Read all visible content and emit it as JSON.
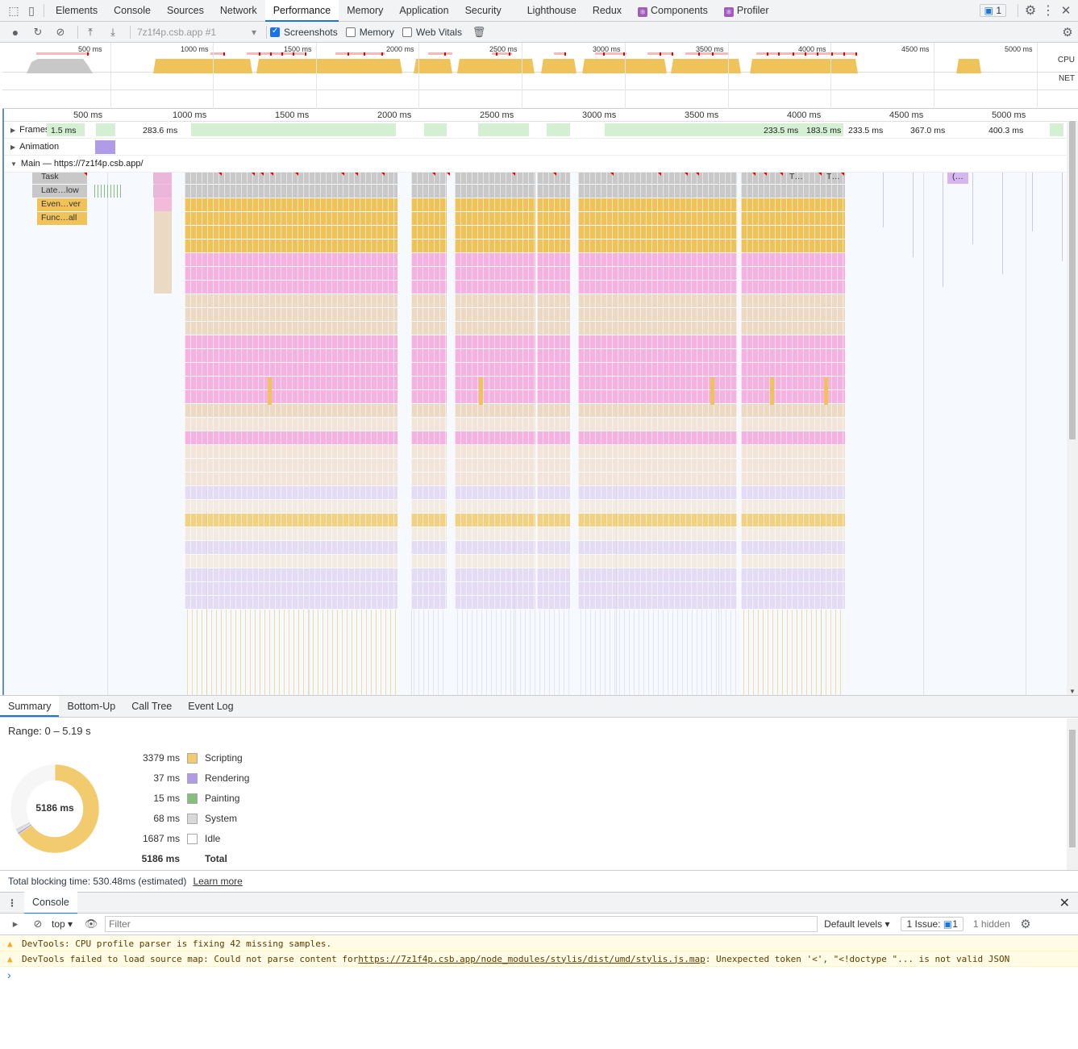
{
  "tabs": [
    "Elements",
    "Console",
    "Sources",
    "Network",
    "Performance",
    "Memory",
    "Application",
    "Security",
    "Lighthouse",
    "Redux",
    "Components",
    "Profiler"
  ],
  "active_tab": "Performance",
  "issues_count": "1",
  "toolbar": {
    "recording": "7z1f4p.csb.app #1",
    "screenshots": "Screenshots",
    "memory": "Memory",
    "web_vitals": "Web Vitals"
  },
  "overview": {
    "ticks": [
      "500 ms",
      "1000 ms",
      "1500 ms",
      "2000 ms",
      "2500 ms",
      "3000 ms",
      "3500 ms",
      "4000 ms",
      "4500 ms",
      "5000 ms"
    ],
    "cpu_label": "CPU",
    "net_label": "NET"
  },
  "ruler": {
    "ticks": [
      "500 ms",
      "1000 ms",
      "1500 ms",
      "2000 ms",
      "2500 ms",
      "3000 ms",
      "3500 ms",
      "4000 ms",
      "4500 ms",
      "5000 ms"
    ]
  },
  "tracks": {
    "frames": "Frames",
    "animation": "Animation",
    "main": "Main — https://7z1f4p.csb.app/"
  },
  "frame_labels": [
    "1.5 ms",
    "283.6 ms",
    "233.5 ms",
    "183.5 ms",
    "233.5 ms",
    "367.0 ms",
    "400.3 ms"
  ],
  "flame_labels": [
    "Task",
    "Late…low",
    "Even…ver",
    "Func…all",
    "T…",
    "T…",
    "(…"
  ],
  "bottom_tabs": [
    "Summary",
    "Bottom-Up",
    "Call Tree",
    "Event Log"
  ],
  "summary": {
    "range": "Range: 0 – 5.19 s",
    "total_center": "5186 ms",
    "rows": [
      {
        "value": "3379 ms",
        "label": "Scripting",
        "color": "#f2cb6e"
      },
      {
        "value": "37 ms",
        "label": "Rendering",
        "color": "#af9be6"
      },
      {
        "value": "15 ms",
        "label": "Painting",
        "color": "#84c07c"
      },
      {
        "value": "68 ms",
        "label": "System",
        "color": "#d9d9d9"
      },
      {
        "value": "1687 ms",
        "label": "Idle",
        "color": "#ffffff"
      }
    ],
    "total": {
      "value": "5186 ms",
      "label": "Total"
    },
    "blocking": "Total blocking time: 530.48ms (estimated)",
    "learn_more": "Learn more"
  },
  "console": {
    "title": "Console",
    "context": "top",
    "filter_placeholder": "Filter",
    "levels": "Default levels",
    "issues_label": "1 Issue:",
    "issues_badge": "1",
    "hidden": "1 hidden",
    "messages": [
      {
        "text": "DevTools: CPU profile parser is fixing 42 missing samples."
      },
      {
        "text": "DevTools failed to load source map: Could not parse content for ",
        "link": "https://7z1f4p.csb.app/node_modules/stylis/dist/umd/stylis.js.map",
        "suffix": ": Unexpected token '<', \"<!doctype \"... is not valid JSON"
      }
    ]
  }
}
